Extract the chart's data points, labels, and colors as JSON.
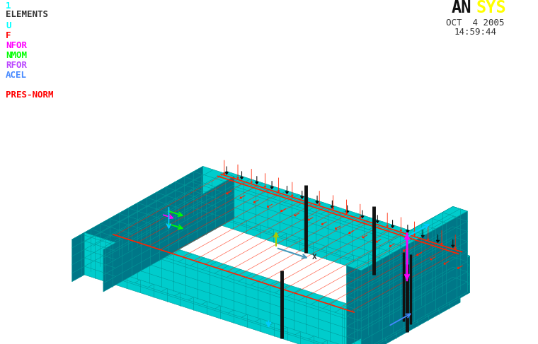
{
  "bg_color": "#ffffff",
  "title_num_color": "#00ffff",
  "elements_color": "#333333",
  "legend_items": [
    {
      "label": "U",
      "color": "#00ffff"
    },
    {
      "label": "F",
      "color": "#ff0000"
    },
    {
      "label": "NFOR",
      "color": "#ff00ff"
    },
    {
      "label": "NMOM",
      "color": "#00ff00"
    },
    {
      "label": "RFOR",
      "color": "#bb44ff"
    },
    {
      "label": "ACEL",
      "color": "#4488ff"
    },
    {
      "label": "",
      "color": null
    },
    {
      "label": "PRES-NORM",
      "color": "#ff0000"
    }
  ],
  "ansys_AN_color": "#111111",
  "ansys_SYS_color": "#ffff00",
  "date_text": "OCT  4 2005",
  "time_text": "14:59:44",
  "date_color": "#333333",
  "mesh_color": "#00cccc",
  "mesh_edge_color": "#009999",
  "mesh_dark_color": "#007788",
  "red_color": "#ff2200",
  "black_color": "#111111",
  "magenta_color": "#ff00ff",
  "cyan_color": "#00ccff",
  "green_color": "#00ff00",
  "yellow_color": "#cccc00",
  "blue_color": "#4488ff"
}
